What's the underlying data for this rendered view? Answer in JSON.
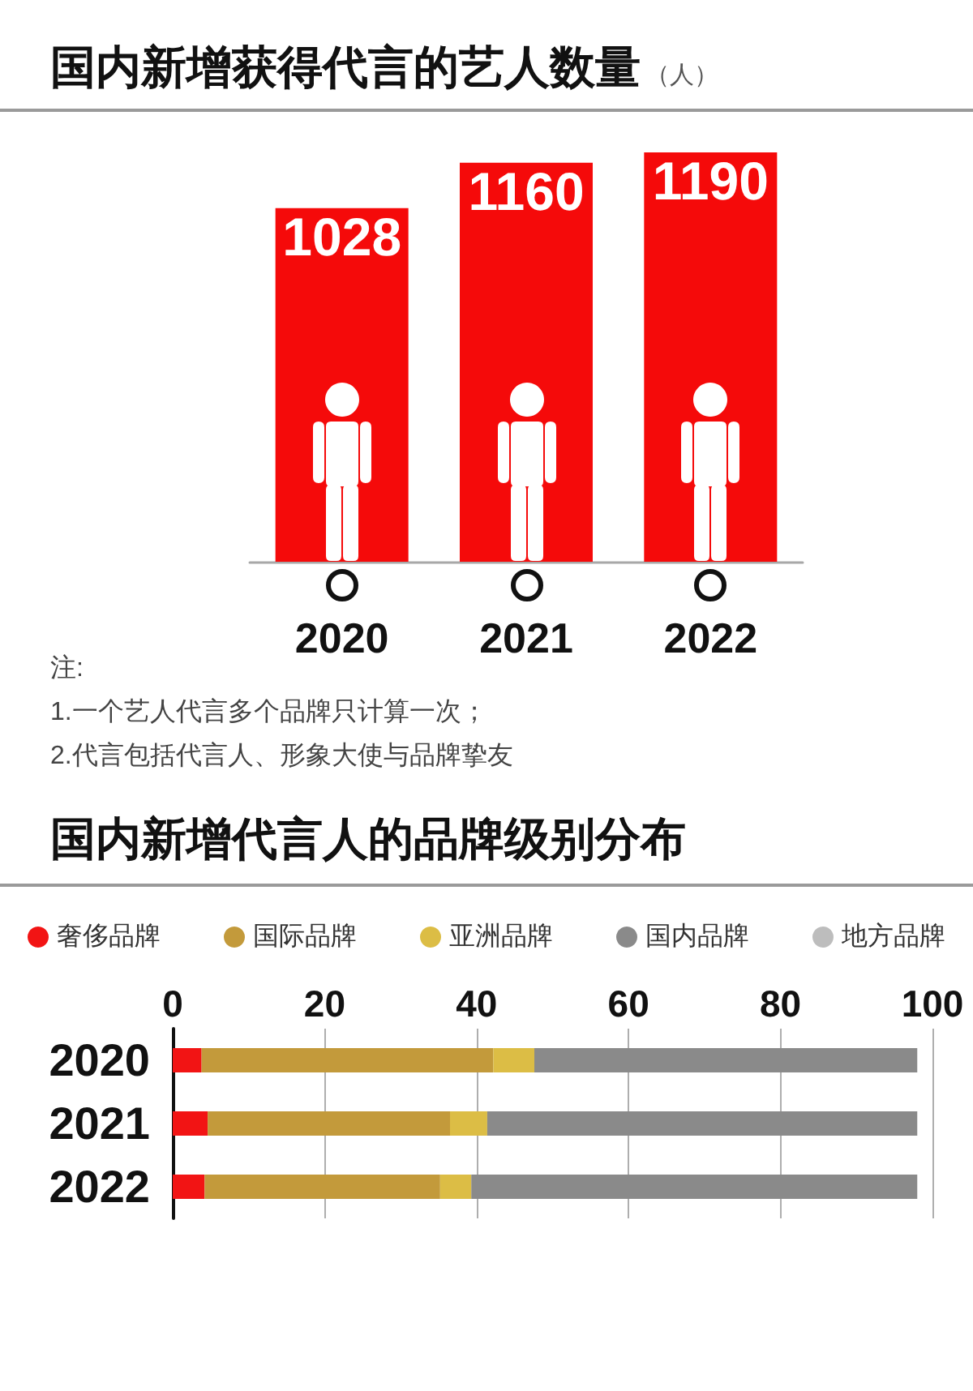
{
  "chart_data": [
    {
      "type": "bar",
      "title": "国内新增获得代言的艺人数量",
      "ylabel": "（人）",
      "categories": [
        "2020",
        "2021",
        "2022"
      ],
      "values": [
        1028,
        1160,
        1190
      ],
      "color": "#f50a0a",
      "data_labels": true,
      "annotations": [
        "注:",
        "1.一个艺人代言多个品牌只计算一次；",
        "2.代言包括代言人、形象大使与品牌挚友"
      ]
    },
    {
      "type": "bar",
      "title": "国内新增代言人的品牌级别分布",
      "categories": [
        "2020",
        "2021",
        "2022"
      ],
      "orientation": "horizontal",
      "stacked": true,
      "series": [
        {
          "name": "奢侈品牌",
          "color": "#f21414",
          "values": [
            3.8,
            4.6,
            4.2
          ]
        },
        {
          "name": "国际品牌",
          "color": "#c39a3b",
          "values": [
            38.4,
            31.9,
            31.0
          ]
        },
        {
          "name": "亚洲品牌",
          "color": "#dcbd45",
          "values": [
            5.4,
            4.9,
            4.1
          ]
        },
        {
          "name": "国内品牌",
          "color": "#8a8a8a",
          "values": [
            50.4,
            56.6,
            58.7
          ]
        },
        {
          "name": "地方品牌",
          "color": "#bdbdbd",
          "values": [
            null,
            null,
            null
          ]
        }
      ],
      "xlim": [
        0,
        100
      ],
      "xticks": [
        0,
        20,
        40,
        60,
        80,
        100
      ],
      "grid": "x",
      "legend": "top"
    }
  ]
}
